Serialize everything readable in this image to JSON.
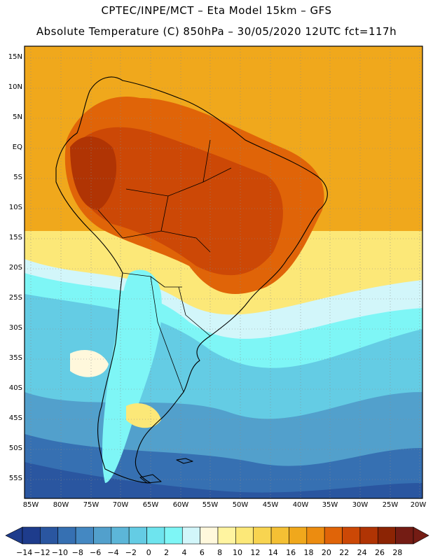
{
  "header": {
    "line1": "CPTEC/INPE/MCT – Eta Model 15km – GFS",
    "line2": "Absolute Temperature (C) 850hPa – 30/05/2020 12UTC fct=117h"
  },
  "map": {
    "lat_labels": [
      "15N",
      "10N",
      "5N",
      "EQ",
      "5S",
      "10S",
      "15S",
      "20S",
      "25S",
      "30S",
      "35S",
      "40S",
      "45S",
      "50S",
      "55S"
    ],
    "lon_labels": [
      "85W",
      "80W",
      "75W",
      "70W",
      "65W",
      "60W",
      "55W",
      "50W",
      "45W",
      "40W",
      "35W",
      "30W",
      "25W",
      "20W"
    ],
    "region": "South America"
  },
  "colorbar": {
    "labels": [
      "-14",
      "-12",
      "-10",
      "-8",
      "-6",
      "-4",
      "-2",
      "0",
      "2",
      "4",
      "6",
      "8",
      "10",
      "12",
      "14",
      "16",
      "18",
      "20",
      "22",
      "24",
      "26",
      "28"
    ],
    "colors": [
      "#1e3c8c",
      "#2a56a0",
      "#3670b2",
      "#4488c2",
      "#52a0cc",
      "#5cb6d8",
      "#64cce4",
      "#6ee4ee",
      "#7ef6f6",
      "#d2f6fa",
      "#fff8dc",
      "#fff4a0",
      "#fce878",
      "#f8d450",
      "#f4c034",
      "#f0a81c",
      "#ec8c10",
      "#e06408",
      "#cc4806",
      "#b03404",
      "#8c2404",
      "#741c14"
    ]
  }
}
